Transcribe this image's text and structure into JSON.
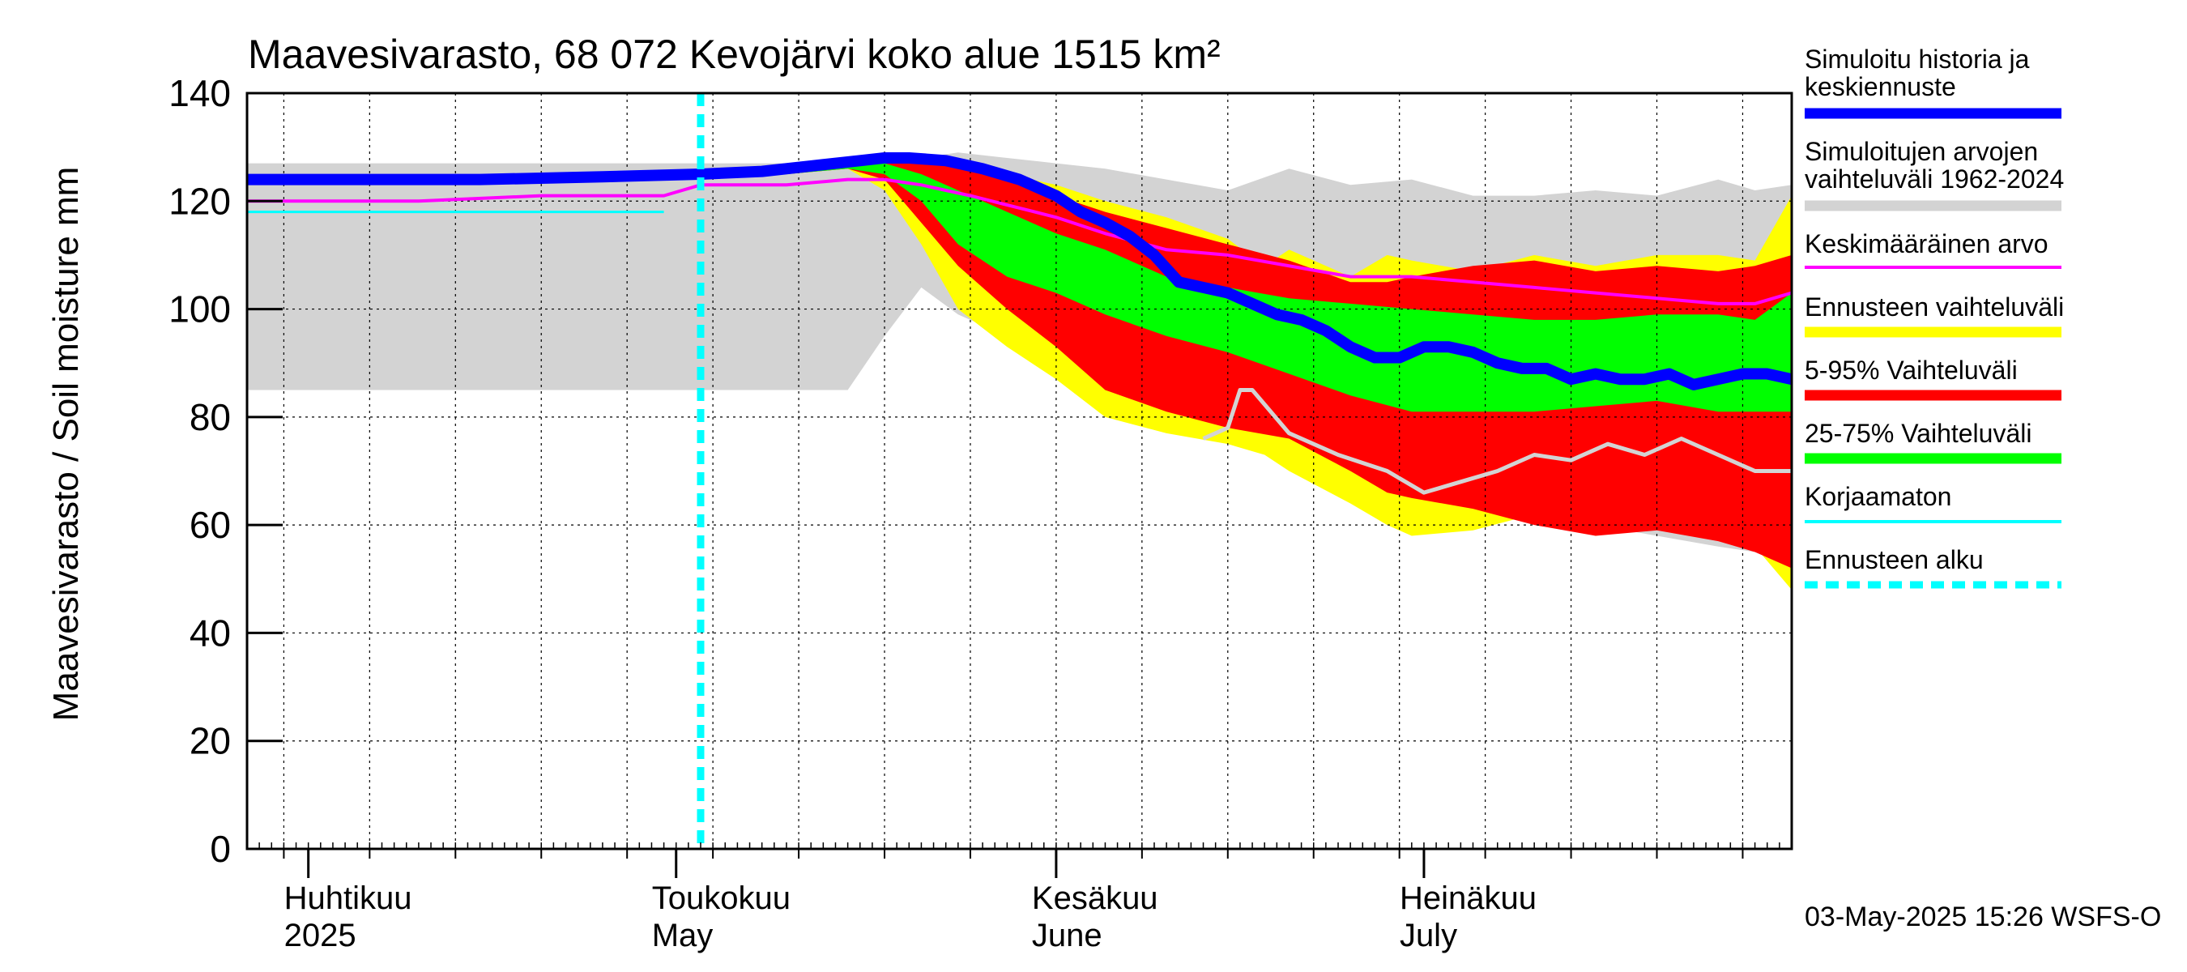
{
  "chart_data": {
    "type": "area",
    "title": "Maavesivarasto, 68 072 Kevojärvi koko alue 1515 km²",
    "ylabel": "Maavesivarasto / Soil moisture   mm",
    "xlabel": "",
    "ylim": [
      0,
      140
    ],
    "xlim": [
      "2025-03-27",
      "2025-07-31"
    ],
    "yticks": [
      0,
      20,
      40,
      60,
      80,
      100,
      120,
      140
    ],
    "grid": true,
    "legend_position": "right",
    "month_labels": [
      {
        "date": "2025-04-01",
        "line1": "Huhtikuu",
        "line2": "2025"
      },
      {
        "date": "2025-05-01",
        "line1": "Toukokuu",
        "line2": "May"
      },
      {
        "date": "2025-06-01",
        "line1": "Kesäkuu",
        "line2": "June"
      },
      {
        "date": "2025-07-01",
        "line1": "Heinäkuu",
        "line2": "July"
      }
    ],
    "forecast_start": "2025-05-03",
    "footer": "03-May-2025 15:26 WSFS-O",
    "colors": {
      "history": "#0000ff",
      "hist_range": "#d3d3d3",
      "mean": "#ff00ff",
      "forecast_range": "#ffff00",
      "range_5_95": "#ff0000",
      "range_25_75": "#00ff00",
      "uncorrected": "#00ffff",
      "forecast_start": "#00ffff",
      "lowest_gray_line": "#d3d3d3"
    },
    "legend": [
      {
        "key": "history",
        "line1": "Simuloitu historia ja",
        "line2": "keskiennuste",
        "style": "thick"
      },
      {
        "key": "hist_range",
        "line1": "Simuloitujen arvojen",
        "line2": "vaihteluväli 1962-2024",
        "style": "thick"
      },
      {
        "key": "mean",
        "line1": "Keskimääräinen arvo",
        "line2": "",
        "style": "thin"
      },
      {
        "key": "forecast_range",
        "line1": "Ennusteen vaihteluväli",
        "line2": "",
        "style": "thick"
      },
      {
        "key": "range_5_95",
        "line1": "5-95% Vaihteluväli",
        "line2": "",
        "style": "thick"
      },
      {
        "key": "range_25_75",
        "line1": "25-75% Vaihteluväli",
        "line2": "",
        "style": "thick"
      },
      {
        "key": "uncorrected",
        "line1": "Korjaamaton",
        "line2": "",
        "style": "thin"
      },
      {
        "key": "forecast_start",
        "line1": "Ennusteen alku",
        "line2": "",
        "style": "dashed"
      }
    ],
    "series": {
      "hist_range": {
        "x": [
          "2025-03-27",
          "2025-04-10",
          "2025-04-20",
          "2025-04-30",
          "2025-05-05",
          "2025-05-10",
          "2025-05-15",
          "2025-05-18",
          "2025-05-21",
          "2025-05-24",
          "2025-05-28",
          "2025-06-01",
          "2025-06-05",
          "2025-06-10",
          "2025-06-15",
          "2025-06-20",
          "2025-06-25",
          "2025-06-30",
          "2025-07-05",
          "2025-07-10",
          "2025-07-15",
          "2025-07-20",
          "2025-07-25",
          "2025-07-28",
          "2025-07-31"
        ],
        "upper": [
          127,
          127,
          127,
          127,
          127,
          127,
          127,
          128,
          128,
          129,
          128,
          127,
          126,
          124,
          122,
          126,
          123,
          124,
          121,
          121,
          122,
          121,
          124,
          122,
          123
        ],
        "lower": [
          85,
          85,
          85,
          85,
          85,
          85,
          85,
          95,
          104,
          99,
          95,
          93,
          88,
          80,
          77,
          77,
          75,
          72,
          68,
          62,
          60,
          58,
          56,
          55,
          54
        ]
      },
      "forecast_range": {
        "x": [
          "2025-05-03",
          "2025-05-10",
          "2025-05-15",
          "2025-05-18",
          "2025-05-21",
          "2025-05-24",
          "2025-05-28",
          "2025-06-01",
          "2025-06-05",
          "2025-06-10",
          "2025-06-15",
          "2025-06-18",
          "2025-06-20",
          "2025-06-25",
          "2025-06-28",
          "2025-06-30",
          "2025-07-05",
          "2025-07-10",
          "2025-07-15",
          "2025-07-20",
          "2025-07-25",
          "2025-07-28",
          "2025-07-31"
        ],
        "upper": [
          125,
          126,
          127,
          128,
          128,
          127,
          125,
          123,
          120,
          117,
          113,
          108,
          111,
          106,
          110,
          109,
          107,
          110,
          108,
          110,
          110,
          109,
          121
        ],
        "lower": [
          124,
          125,
          126,
          122,
          112,
          100,
          93,
          87,
          80,
          77,
          75,
          73,
          70,
          64,
          60,
          58,
          59,
          62,
          58,
          60,
          59,
          56,
          48
        ]
      },
      "range_5_95": {
        "x": [
          "2025-05-03",
          "2025-05-10",
          "2025-05-15",
          "2025-05-18",
          "2025-05-21",
          "2025-05-24",
          "2025-05-28",
          "2025-06-01",
          "2025-06-05",
          "2025-06-10",
          "2025-06-15",
          "2025-06-20",
          "2025-06-25",
          "2025-06-28",
          "2025-06-30",
          "2025-07-05",
          "2025-07-10",
          "2025-07-15",
          "2025-07-20",
          "2025-07-25",
          "2025-07-28",
          "2025-07-31"
        ],
        "upper": [
          125,
          126,
          127,
          128,
          128,
          126,
          124,
          121,
          118,
          115,
          112,
          109,
          105,
          105,
          106,
          108,
          109,
          107,
          108,
          107,
          108,
          110
        ],
        "lower": [
          124,
          125,
          126,
          124,
          116,
          108,
          100,
          93,
          85,
          81,
          78,
          76,
          70,
          66,
          65,
          63,
          60,
          58,
          59,
          57,
          55,
          52
        ]
      },
      "range_25_75": {
        "x": [
          "2025-05-03",
          "2025-05-10",
          "2025-05-15",
          "2025-05-18",
          "2025-05-21",
          "2025-05-24",
          "2025-05-28",
          "2025-06-01",
          "2025-06-05",
          "2025-06-10",
          "2025-06-15",
          "2025-06-20",
          "2025-06-25",
          "2025-06-30",
          "2025-07-05",
          "2025-07-10",
          "2025-07-15",
          "2025-07-20",
          "2025-07-25",
          "2025-07-28",
          "2025-07-31"
        ],
        "upper": [
          125,
          126,
          127,
          127,
          125,
          122,
          118,
          114,
          111,
          106,
          104,
          102,
          101,
          100,
          99,
          98,
          98,
          99,
          99,
          98,
          103
        ],
        "lower": [
          124,
          125,
          126,
          125,
          120,
          112,
          106,
          103,
          99,
          95,
          92,
          88,
          84,
          81,
          81,
          81,
          82,
          83,
          81,
          81,
          81
        ]
      },
      "history": {
        "x": [
          "2025-03-27",
          "2025-04-05",
          "2025-04-15",
          "2025-04-25",
          "2025-05-03",
          "2025-05-08",
          "2025-05-12",
          "2025-05-16",
          "2025-05-18",
          "2025-05-20",
          "2025-05-23",
          "2025-05-26",
          "2025-05-29",
          "2025-06-01",
          "2025-06-03",
          "2025-06-05",
          "2025-06-07",
          "2025-06-09",
          "2025-06-11",
          "2025-06-13",
          "2025-06-15",
          "2025-06-17",
          "2025-06-19",
          "2025-06-21",
          "2025-06-23",
          "2025-06-25",
          "2025-06-27",
          "2025-06-29",
          "2025-07-01",
          "2025-07-03",
          "2025-07-05",
          "2025-07-07",
          "2025-07-09",
          "2025-07-11",
          "2025-07-13",
          "2025-07-15",
          "2025-07-17",
          "2025-07-19",
          "2025-07-21",
          "2025-07-23",
          "2025-07-25",
          "2025-07-27",
          "2025-07-29",
          "2025-07-31"
        ],
        "y": [
          124,
          124,
          124,
          124.5,
          125,
          125.5,
          126.5,
          127.5,
          128,
          128,
          127.5,
          126,
          124,
          121,
          118,
          116,
          113.5,
          110,
          105,
          104,
          103,
          101,
          99,
          98,
          96,
          93,
          91,
          91,
          93,
          93,
          92,
          90,
          89,
          89,
          87,
          88,
          87,
          87,
          88,
          86,
          87,
          88,
          88,
          87
        ]
      },
      "mean": {
        "x": [
          "2025-03-27",
          "2025-04-10",
          "2025-04-20",
          "2025-04-30",
          "2025-05-03",
          "2025-05-10",
          "2025-05-15",
          "2025-05-18",
          "2025-05-21",
          "2025-05-25",
          "2025-06-01",
          "2025-06-05",
          "2025-06-10",
          "2025-06-15",
          "2025-06-20",
          "2025-06-25",
          "2025-06-30",
          "2025-07-05",
          "2025-07-10",
          "2025-07-15",
          "2025-07-20",
          "2025-07-25",
          "2025-07-28",
          "2025-07-31"
        ],
        "y": [
          120,
          120,
          121,
          121,
          123,
          123,
          124,
          124,
          123,
          121,
          117,
          114,
          111,
          110,
          108,
          106,
          106,
          105,
          104,
          103,
          102,
          101,
          101,
          103
        ]
      },
      "uncorrected": {
        "x": [
          "2025-03-27",
          "2025-04-30"
        ],
        "y": [
          118,
          118
        ]
      },
      "lowest_gray_line": {
        "x": [
          "2025-06-13",
          "2025-06-15",
          "2025-06-16",
          "2025-06-17",
          "2025-06-20",
          "2025-06-24",
          "2025-06-28",
          "2025-07-01",
          "2025-07-04",
          "2025-07-07",
          "2025-07-10",
          "2025-07-13",
          "2025-07-16",
          "2025-07-19",
          "2025-07-22",
          "2025-07-25",
          "2025-07-28",
          "2025-07-31"
        ],
        "y": [
          76,
          78,
          85,
          85,
          77,
          73,
          70,
          66,
          68,
          70,
          73,
          72,
          75,
          73,
          76,
          73,
          70,
          70
        ]
      }
    }
  }
}
